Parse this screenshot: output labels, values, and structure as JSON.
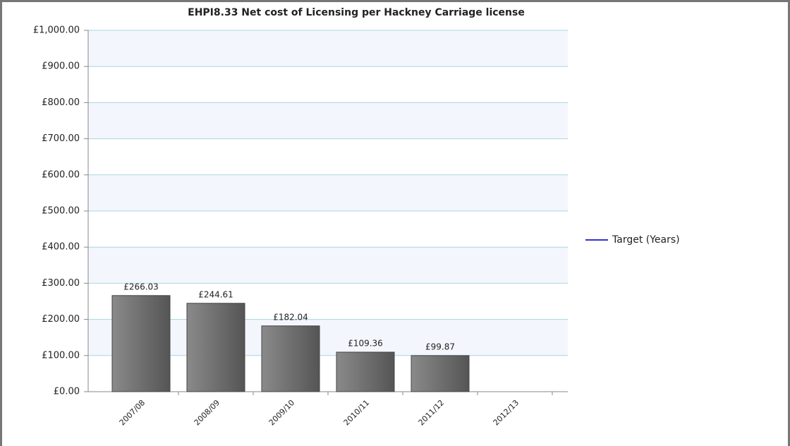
{
  "chart_data": {
    "type": "bar",
    "title": "EHPI8.33 Net cost of Licensing per Hackney Carriage license",
    "categories": [
      "2007/08",
      "2008/09",
      "2009/10",
      "2010/11",
      "2011/12",
      "2012/13"
    ],
    "values": [
      266.03,
      244.61,
      182.04,
      109.36,
      99.87,
      null
    ],
    "value_labels": [
      "£266.03",
      "£244.61",
      "£182.04",
      "£109.36",
      "£99.87",
      null
    ],
    "color": "#6e6e6e",
    "series": [
      {
        "name": "Target (Years)",
        "color": "#3333cc",
        "values": [
          null,
          null,
          null,
          null,
          null,
          null
        ]
      }
    ],
    "ylim": [
      0,
      1000
    ],
    "yticks": [
      {
        "value": 0,
        "label": "£0.00"
      },
      {
        "value": 100,
        "label": "£100.00"
      },
      {
        "value": 200,
        "label": "£200.00"
      },
      {
        "value": 300,
        "label": "£300.00"
      },
      {
        "value": 400,
        "label": "£400.00"
      },
      {
        "value": 500,
        "label": "£500.00"
      },
      {
        "value": 600,
        "label": "£600.00"
      },
      {
        "value": 700,
        "label": "£700.00"
      },
      {
        "value": 800,
        "label": "£800.00"
      },
      {
        "value": 900,
        "label": "£900.00"
      },
      {
        "value": 1000,
        "label": "£1,000.00"
      }
    ],
    "grid": true,
    "legend": "right"
  }
}
